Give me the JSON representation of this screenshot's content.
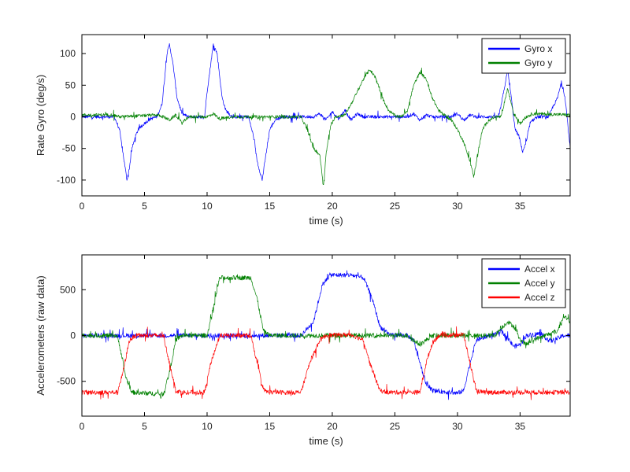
{
  "figure": {
    "background": "#ffffff"
  },
  "chart_data": [
    {
      "type": "line",
      "xlabel": "time (s)",
      "ylabel": "Rate Gyro (deg/s)",
      "xlim": [
        0,
        39
      ],
      "ylim": [
        -125,
        130
      ],
      "xticks": [
        0,
        5,
        10,
        15,
        20,
        25,
        30,
        35
      ],
      "yticks": [
        -100,
        -50,
        0,
        50,
        100
      ],
      "grid": false,
      "legend": "top-right",
      "noise": [
        2.5,
        8
      ],
      "series": [
        {
          "name": "Gyro x",
          "color": "#0000ff",
          "points": [
            [
              0,
              0
            ],
            [
              2.6,
              0
            ],
            [
              3.0,
              -20
            ],
            [
              3.3,
              -60
            ],
            [
              3.6,
              -100
            ],
            [
              3.8,
              -80
            ],
            [
              4.0,
              -50
            ],
            [
              4.3,
              -30
            ],
            [
              4.5,
              -20
            ],
            [
              4.8,
              -15
            ],
            [
              5.0,
              -10
            ],
            [
              5.5,
              -3
            ],
            [
              6.0,
              0
            ],
            [
              6.4,
              20
            ],
            [
              6.8,
              100
            ],
            [
              7.0,
              115
            ],
            [
              7.3,
              80
            ],
            [
              7.6,
              30
            ],
            [
              8.0,
              5
            ],
            [
              8.5,
              0
            ],
            [
              9.8,
              0
            ],
            [
              10.0,
              40
            ],
            [
              10.5,
              115
            ],
            [
              10.8,
              100
            ],
            [
              11.2,
              30
            ],
            [
              11.5,
              10
            ],
            [
              12.0,
              0
            ],
            [
              13.3,
              0
            ],
            [
              13.7,
              -30
            ],
            [
              14.0,
              -70
            ],
            [
              14.4,
              -100
            ],
            [
              14.7,
              -60
            ],
            [
              15.0,
              -20
            ],
            [
              15.5,
              -3
            ],
            [
              16.0,
              0
            ],
            [
              18.5,
              0
            ],
            [
              19.0,
              5
            ],
            [
              19.5,
              -5
            ],
            [
              20.0,
              8
            ],
            [
              20.5,
              -3
            ],
            [
              21.0,
              10
            ],
            [
              21.5,
              -5
            ],
            [
              22.0,
              5
            ],
            [
              22.5,
              0
            ],
            [
              26.0,
              0
            ],
            [
              26.5,
              5
            ],
            [
              27.0,
              -5
            ],
            [
              27.5,
              3
            ],
            [
              28.0,
              0
            ],
            [
              29.5,
              0
            ],
            [
              30.0,
              5
            ],
            [
              30.5,
              -5
            ],
            [
              31.0,
              3
            ],
            [
              31.5,
              0
            ],
            [
              33.3,
              0
            ],
            [
              33.7,
              40
            ],
            [
              34.0,
              75
            ],
            [
              34.3,
              30
            ],
            [
              34.6,
              -20
            ],
            [
              34.9,
              -30
            ],
            [
              35.2,
              -55
            ],
            [
              35.5,
              -40
            ],
            [
              35.8,
              -10
            ],
            [
              36.3,
              0
            ],
            [
              37.3,
              0
            ],
            [
              37.6,
              15
            ],
            [
              38.0,
              30
            ],
            [
              38.3,
              55
            ],
            [
              38.6,
              30
            ],
            [
              38.9,
              -30
            ],
            [
              39.0,
              -50
            ]
          ]
        },
        {
          "name": "Gyro y",
          "color": "#008000",
          "points": [
            [
              0,
              3
            ],
            [
              2.5,
              3
            ],
            [
              3.0,
              0
            ],
            [
              6.0,
              3
            ],
            [
              6.5,
              0
            ],
            [
              7.0,
              -5
            ],
            [
              7.5,
              3
            ],
            [
              8.0,
              -10
            ],
            [
              8.5,
              0
            ],
            [
              10.0,
              0
            ],
            [
              10.5,
              5
            ],
            [
              11.0,
              -3
            ],
            [
              12.0,
              0
            ],
            [
              17.5,
              0
            ],
            [
              18.0,
              -20
            ],
            [
              18.5,
              -50
            ],
            [
              19.0,
              -60
            ],
            [
              19.3,
              -110
            ],
            [
              19.5,
              -60
            ],
            [
              19.8,
              -20
            ],
            [
              20.2,
              0
            ],
            [
              21.0,
              3
            ],
            [
              21.5,
              20
            ],
            [
              22.0,
              40
            ],
            [
              22.5,
              60
            ],
            [
              23.0,
              75
            ],
            [
              23.5,
              60
            ],
            [
              24.0,
              30
            ],
            [
              24.5,
              10
            ],
            [
              25.0,
              2
            ],
            [
              25.5,
              0
            ],
            [
              26.0,
              10
            ],
            [
              26.5,
              50
            ],
            [
              27.0,
              70
            ],
            [
              27.5,
              60
            ],
            [
              28.0,
              30
            ],
            [
              28.5,
              10
            ],
            [
              29.0,
              2
            ],
            [
              29.5,
              -5
            ],
            [
              30.0,
              -20
            ],
            [
              30.5,
              -40
            ],
            [
              31.0,
              -70
            ],
            [
              31.3,
              -95
            ],
            [
              31.6,
              -60
            ],
            [
              32.0,
              -20
            ],
            [
              32.5,
              -5
            ],
            [
              33.0,
              0
            ],
            [
              33.5,
              0
            ],
            [
              34.0,
              45
            ],
            [
              34.5,
              5
            ],
            [
              35.0,
              -10
            ],
            [
              35.5,
              0
            ],
            [
              36.0,
              5
            ],
            [
              39.0,
              3
            ]
          ]
        }
      ]
    },
    {
      "type": "line",
      "xlabel": "time (s)",
      "ylabel": "Accelerometers (raw data)",
      "xlim": [
        0,
        39
      ],
      "ylim": [
        -880,
        880
      ],
      "xticks": [
        0,
        5,
        10,
        15,
        20,
        25,
        30,
        35
      ],
      "yticks": [
        -500,
        0,
        500
      ],
      "grid": false,
      "legend": "top-right",
      "noise": [
        25,
        70
      ],
      "series": [
        {
          "name": "Accel x",
          "color": "#0000ff",
          "points": [
            [
              0,
              0
            ],
            [
              17.5,
              0
            ],
            [
              18.5,
              150
            ],
            [
              19.2,
              550
            ],
            [
              19.8,
              660
            ],
            [
              21.5,
              660
            ],
            [
              22.5,
              630
            ],
            [
              23.2,
              400
            ],
            [
              23.8,
              100
            ],
            [
              24.5,
              10
            ],
            [
              26.0,
              0
            ],
            [
              26.5,
              -60
            ],
            [
              27.0,
              -300
            ],
            [
              27.5,
              -530
            ],
            [
              28.0,
              -600
            ],
            [
              30.0,
              -630
            ],
            [
              30.5,
              -600
            ],
            [
              31.0,
              -300
            ],
            [
              31.5,
              -50
            ],
            [
              32.5,
              0
            ],
            [
              33.0,
              10
            ],
            [
              33.5,
              50
            ],
            [
              34.0,
              -30
            ],
            [
              34.5,
              -120
            ],
            [
              35.0,
              -100
            ],
            [
              35.5,
              0
            ],
            [
              36.5,
              20
            ],
            [
              37.5,
              -60
            ],
            [
              38.5,
              0
            ],
            [
              39.0,
              0
            ]
          ]
        },
        {
          "name": "Accel y",
          "color": "#008000",
          "points": [
            [
              0,
              0
            ],
            [
              2.8,
              0
            ],
            [
              3.0,
              -100
            ],
            [
              3.5,
              -450
            ],
            [
              4.0,
              -620
            ],
            [
              6.5,
              -640
            ],
            [
              7.0,
              -400
            ],
            [
              7.5,
              -50
            ],
            [
              8.0,
              0
            ],
            [
              10.0,
              0
            ],
            [
              10.5,
              300
            ],
            [
              11.0,
              630
            ],
            [
              13.5,
              630
            ],
            [
              14.0,
              400
            ],
            [
              14.5,
              50
            ],
            [
              15.0,
              0
            ],
            [
              26.0,
              0
            ],
            [
              26.5,
              -50
            ],
            [
              27.0,
              -100
            ],
            [
              27.5,
              -50
            ],
            [
              28.0,
              0
            ],
            [
              33.0,
              0
            ],
            [
              33.5,
              80
            ],
            [
              34.0,
              150
            ],
            [
              34.5,
              100
            ],
            [
              35.0,
              -50
            ],
            [
              35.5,
              -100
            ],
            [
              36.0,
              -50
            ],
            [
              37.0,
              0
            ],
            [
              38.0,
              50
            ],
            [
              38.5,
              220
            ],
            [
              39.0,
              150
            ]
          ]
        },
        {
          "name": "Accel z",
          "color": "#ff0000",
          "points": [
            [
              0,
              -620
            ],
            [
              2.8,
              -620
            ],
            [
              3.2,
              -450
            ],
            [
              3.8,
              -50
            ],
            [
              4.3,
              0
            ],
            [
              6.5,
              0
            ],
            [
              7.0,
              -300
            ],
            [
              7.5,
              -600
            ],
            [
              8.0,
              -620
            ],
            [
              9.8,
              -620
            ],
            [
              10.3,
              -300
            ],
            [
              11.0,
              0
            ],
            [
              13.5,
              0
            ],
            [
              14.0,
              -300
            ],
            [
              14.5,
              -600
            ],
            [
              15.0,
              -620
            ],
            [
              17.5,
              -620
            ],
            [
              18.2,
              -300
            ],
            [
              19.0,
              -50
            ],
            [
              19.5,
              0
            ],
            [
              21.5,
              10
            ],
            [
              22.5,
              -50
            ],
            [
              23.0,
              -300
            ],
            [
              23.8,
              -600
            ],
            [
              24.5,
              -620
            ],
            [
              27.0,
              -620
            ],
            [
              27.5,
              -300
            ],
            [
              28.0,
              -80
            ],
            [
              28.5,
              0
            ],
            [
              30.5,
              10
            ],
            [
              31.0,
              -300
            ],
            [
              31.5,
              -600
            ],
            [
              32.0,
              -620
            ],
            [
              39.0,
              -620
            ]
          ]
        }
      ]
    }
  ]
}
